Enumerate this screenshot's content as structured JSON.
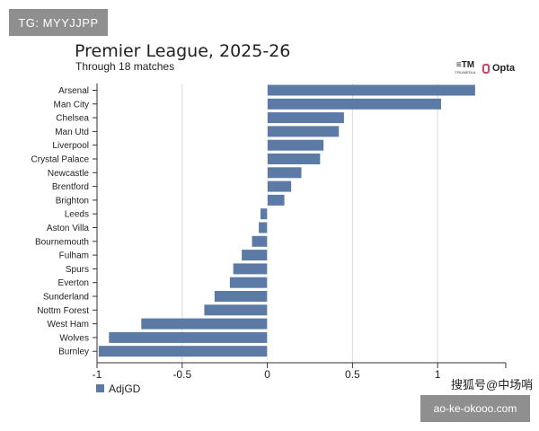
{
  "watermarks": {
    "top_left": "TG: MYYJJPP",
    "bottom_right_text": "搜狐号@中场哨",
    "bottom_right_box": "ao-ke-okooo.com"
  },
  "header": {
    "title": "Premier League, 2025-26",
    "subtitle": "Through 18 matches"
  },
  "logos": {
    "trumedia": "TRUMEDIA",
    "opta": "Opta"
  },
  "colors": {
    "bar": "#5b7aa6",
    "grid": "#d9d9d9",
    "axis": "#333333"
  },
  "chart_data": {
    "type": "bar",
    "orientation": "horizontal",
    "title": "Premier League, 2025-26",
    "subtitle": "Through 18 matches",
    "categories": [
      "Arsenal",
      "Man City",
      "Chelsea",
      "Man Utd",
      "Liverpool",
      "Crystal Palace",
      "Newcastle",
      "Brentford",
      "Brighton",
      "Leeds",
      "Aston Villa",
      "Bournemouth",
      "Fulham",
      "Spurs",
      "Everton",
      "Sunderland",
      "Nottm Forest",
      "West Ham",
      "Wolves",
      "Burnley"
    ],
    "series": [
      {
        "name": "AdjGD",
        "values": [
          1.22,
          1.02,
          0.45,
          0.42,
          0.33,
          0.31,
          0.2,
          0.14,
          0.1,
          -0.04,
          -0.05,
          -0.09,
          -0.15,
          -0.2,
          -0.22,
          -0.31,
          -0.37,
          -0.74,
          -0.93,
          -0.99
        ]
      }
    ],
    "xlim": [
      -1,
      1.4
    ],
    "xticks": [
      -1,
      -0.5,
      0,
      0.5,
      1
    ],
    "xtick_labels": [
      "-1",
      "-0.5",
      "0",
      "0.5",
      "1"
    ],
    "grid": true,
    "legend": {
      "label": "AdjGD",
      "position": "bottom-left"
    }
  }
}
